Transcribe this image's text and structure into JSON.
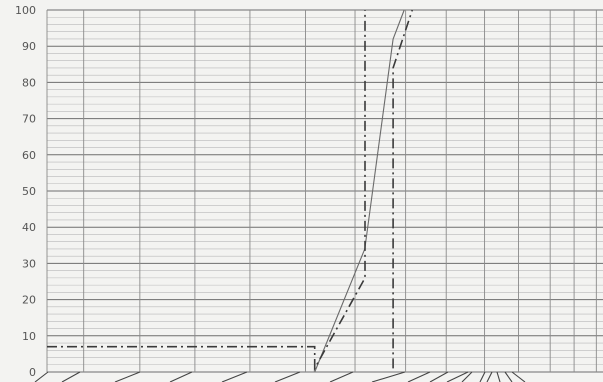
{
  "chart_data": {
    "type": "line",
    "ylim": [
      0,
      100
    ],
    "y_ticks": [
      "0",
      "10",
      "20",
      "30",
      "40",
      "50",
      "60",
      "70",
      "80",
      "90",
      "100"
    ],
    "x_ticks": [],
    "grid": true,
    "series": [
      {
        "style": "solid",
        "points": [
          {
            "x": 0.4815,
            "y": 0
          },
          {
            "x": 0.5715,
            "y": 34
          },
          {
            "x": 0.6225,
            "y": 92
          },
          {
            "x": 0.6425,
            "y": 100
          }
        ]
      },
      {
        "style": "dash-dot",
        "points": [
          {
            "x": 0.0,
            "y": 7
          },
          {
            "x": 0.4815,
            "y": 7
          },
          {
            "x": 0.4815,
            "y": 1
          },
          {
            "x": 0.572,
            "y": 26
          },
          {
            "x": 0.572,
            "y": 100
          }
        ]
      },
      {
        "style": "dash-dot",
        "points": [
          {
            "x": 0.6225,
            "y": 1
          },
          {
            "x": 0.6225,
            "y": 84
          },
          {
            "x": 0.657,
            "y": 100
          }
        ]
      }
    ]
  }
}
